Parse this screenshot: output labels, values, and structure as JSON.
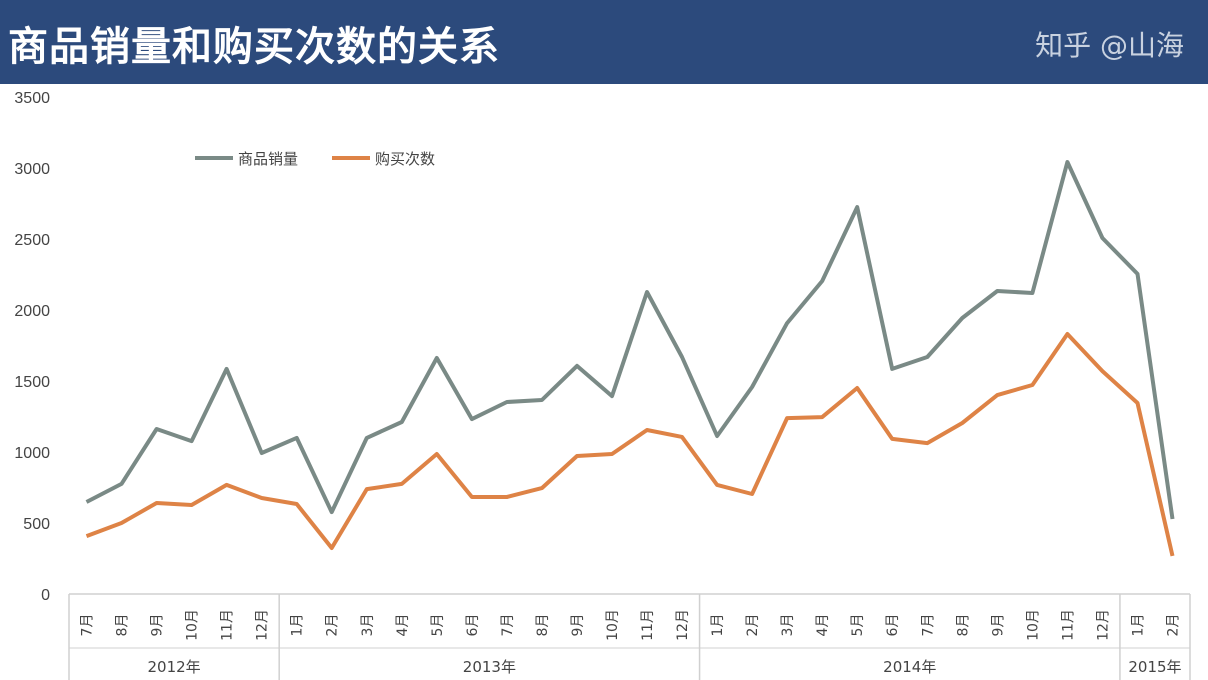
{
  "title": "商品销量和购买次数的关系",
  "watermark": "知乎 @山海",
  "chart_data": {
    "type": "line",
    "title": "商品销量和购买次数的关系",
    "ylim": [
      0,
      3500
    ],
    "yticks": [
      0,
      500,
      1000,
      1500,
      2000,
      2500,
      3000,
      3500
    ],
    "grid": false,
    "legend": "top-left",
    "groups": [
      {
        "label": "2012年",
        "count": 6
      },
      {
        "label": "2013年",
        "count": 12
      },
      {
        "label": "2014年",
        "count": 12
      },
      {
        "label": "2015年",
        "count": 2
      }
    ],
    "categories": [
      "7月",
      "8月",
      "9月",
      "10月",
      "11月",
      "12月",
      "1月",
      "2月",
      "3月",
      "4月",
      "5月",
      "6月",
      "7月",
      "8月",
      "9月",
      "10月",
      "11月",
      "12月",
      "1月",
      "2月",
      "3月",
      "4月",
      "5月",
      "6月",
      "7月",
      "8月",
      "9月",
      "10月",
      "11月",
      "12月",
      "1月",
      "2月"
    ],
    "series": [
      {
        "name": "商品销量",
        "color": "#7a8a86",
        "values": [
          648,
          775,
          1162,
          1077,
          1585,
          993,
          1099,
          577,
          1099,
          1211,
          1662,
          1232,
          1352,
          1366,
          1606,
          1394,
          2127,
          1669,
          1113,
          1458,
          1908,
          2204,
          2725,
          1585,
          1669,
          1944,
          2134,
          2120,
          3042,
          2507,
          2254,
          528
        ]
      },
      {
        "name": "购买次数",
        "color": "#de8346",
        "values": [
          408,
          500,
          641,
          627,
          768,
          676,
          634,
          324,
          739,
          775,
          986,
          683,
          683,
          746,
          972,
          986,
          1155,
          1106,
          768,
          704,
          1239,
          1246,
          1451,
          1092,
          1063,
          1204,
          1401,
          1472,
          1831,
          1570,
          1345,
          268
        ]
      }
    ]
  }
}
